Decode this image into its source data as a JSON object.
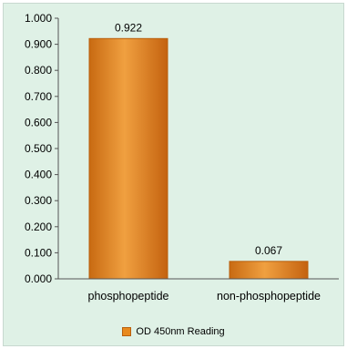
{
  "chart_data": {
    "type": "bar",
    "categories": [
      "phosphopeptide",
      "non-phosphopeptide"
    ],
    "series": [
      {
        "name": "OD 450nm Reading",
        "values": [
          0.922,
          0.067
        ]
      }
    ],
    "data_labels": [
      "0.922",
      "0.067"
    ],
    "ylim": [
      0,
      1.0
    ],
    "yticks": [
      "0.000",
      "0.100",
      "0.200",
      "0.300",
      "0.400",
      "0.500",
      "0.600",
      "0.700",
      "0.800",
      "0.900",
      "1.000"
    ],
    "xlabel": "",
    "ylabel": "",
    "grid": false,
    "legend_position": "bottom",
    "colors": {
      "bar": "#e8891d",
      "bar_dark": "#b95f0c",
      "bar_light": "#f6b15a",
      "background": "#dff1e6"
    }
  }
}
